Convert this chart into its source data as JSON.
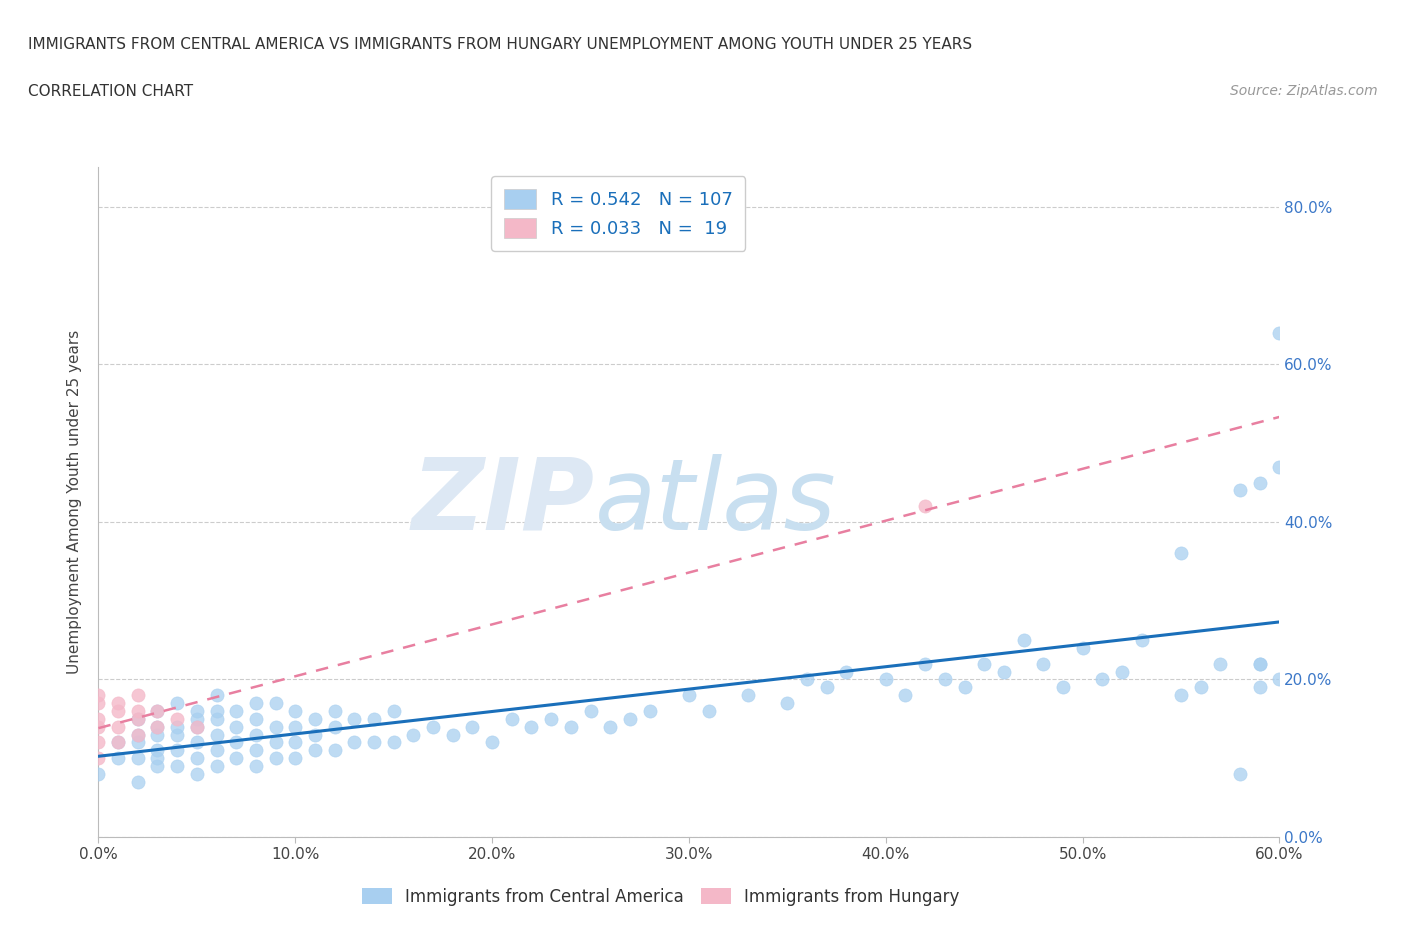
{
  "title_line1": "IMMIGRANTS FROM CENTRAL AMERICA VS IMMIGRANTS FROM HUNGARY UNEMPLOYMENT AMONG YOUTH UNDER 25 YEARS",
  "title_line2": "CORRELATION CHART",
  "source": "Source: ZipAtlas.com",
  "ylabel": "Unemployment Among Youth under 25 years",
  "xlim": [
    0.0,
    0.6
  ],
  "ylim": [
    0.0,
    0.85
  ],
  "xticks": [
    0.0,
    0.1,
    0.2,
    0.3,
    0.4,
    0.5,
    0.6
  ],
  "yticks": [
    0.0,
    0.2,
    0.4,
    0.6,
    0.8
  ],
  "ytick_labels": [
    "0.0%",
    "20.0%",
    "40.0%",
    "60.0%",
    "80.0%"
  ],
  "xtick_labels": [
    "0.0%",
    "10.0%",
    "20.0%",
    "30.0%",
    "40.0%",
    "50.0%",
    "60.0%"
  ],
  "R_blue": 0.542,
  "N_blue": 107,
  "R_pink": 0.033,
  "N_pink": 19,
  "blue_color": "#a8cff0",
  "pink_color": "#f4b8c8",
  "blue_line_color": "#1a6fba",
  "pink_line_color": "#e87fa0",
  "grid_color": "#cccccc",
  "watermark_zip": "ZIP",
  "watermark_atlas": "atlas",
  "legend_label_blue": "Immigrants from Central America",
  "legend_label_pink": "Immigrants from Hungary",
  "blue_scatter_x": [
    0.0,
    0.01,
    0.01,
    0.02,
    0.02,
    0.02,
    0.02,
    0.02,
    0.03,
    0.03,
    0.03,
    0.03,
    0.03,
    0.03,
    0.04,
    0.04,
    0.04,
    0.04,
    0.04,
    0.05,
    0.05,
    0.05,
    0.05,
    0.05,
    0.05,
    0.06,
    0.06,
    0.06,
    0.06,
    0.06,
    0.06,
    0.07,
    0.07,
    0.07,
    0.07,
    0.08,
    0.08,
    0.08,
    0.08,
    0.08,
    0.09,
    0.09,
    0.09,
    0.09,
    0.1,
    0.1,
    0.1,
    0.1,
    0.11,
    0.11,
    0.11,
    0.12,
    0.12,
    0.12,
    0.13,
    0.13,
    0.14,
    0.14,
    0.15,
    0.15,
    0.16,
    0.17,
    0.18,
    0.19,
    0.2,
    0.21,
    0.22,
    0.23,
    0.24,
    0.25,
    0.26,
    0.27,
    0.28,
    0.3,
    0.31,
    0.33,
    0.35,
    0.36,
    0.37,
    0.38,
    0.4,
    0.41,
    0.42,
    0.43,
    0.44,
    0.45,
    0.46,
    0.47,
    0.48,
    0.49,
    0.5,
    0.51,
    0.52,
    0.53,
    0.55,
    0.55,
    0.56,
    0.57,
    0.58,
    0.58,
    0.59,
    0.59,
    0.59,
    0.59,
    0.6,
    0.6,
    0.6
  ],
  "blue_scatter_y": [
    0.08,
    0.1,
    0.12,
    0.07,
    0.1,
    0.12,
    0.13,
    0.15,
    0.09,
    0.1,
    0.11,
    0.13,
    0.14,
    0.16,
    0.09,
    0.11,
    0.13,
    0.14,
    0.17,
    0.08,
    0.1,
    0.12,
    0.14,
    0.15,
    0.16,
    0.09,
    0.11,
    0.13,
    0.15,
    0.16,
    0.18,
    0.1,
    0.12,
    0.14,
    0.16,
    0.09,
    0.11,
    0.13,
    0.15,
    0.17,
    0.1,
    0.12,
    0.14,
    0.17,
    0.1,
    0.12,
    0.14,
    0.16,
    0.11,
    0.13,
    0.15,
    0.11,
    0.14,
    0.16,
    0.12,
    0.15,
    0.12,
    0.15,
    0.12,
    0.16,
    0.13,
    0.14,
    0.13,
    0.14,
    0.12,
    0.15,
    0.14,
    0.15,
    0.14,
    0.16,
    0.14,
    0.15,
    0.16,
    0.18,
    0.16,
    0.18,
    0.17,
    0.2,
    0.19,
    0.21,
    0.2,
    0.18,
    0.22,
    0.2,
    0.19,
    0.22,
    0.21,
    0.25,
    0.22,
    0.19,
    0.24,
    0.2,
    0.21,
    0.25,
    0.18,
    0.36,
    0.19,
    0.22,
    0.08,
    0.44,
    0.19,
    0.22,
    0.45,
    0.22,
    0.2,
    0.64,
    0.47
  ],
  "pink_scatter_x": [
    0.0,
    0.0,
    0.0,
    0.0,
    0.0,
    0.0,
    0.01,
    0.01,
    0.01,
    0.01,
    0.02,
    0.02,
    0.02,
    0.02,
    0.03,
    0.03,
    0.04,
    0.05,
    0.42
  ],
  "pink_scatter_y": [
    0.1,
    0.12,
    0.14,
    0.15,
    0.17,
    0.18,
    0.12,
    0.14,
    0.16,
    0.17,
    0.13,
    0.15,
    0.16,
    0.18,
    0.14,
    0.16,
    0.15,
    0.14,
    0.42
  ]
}
